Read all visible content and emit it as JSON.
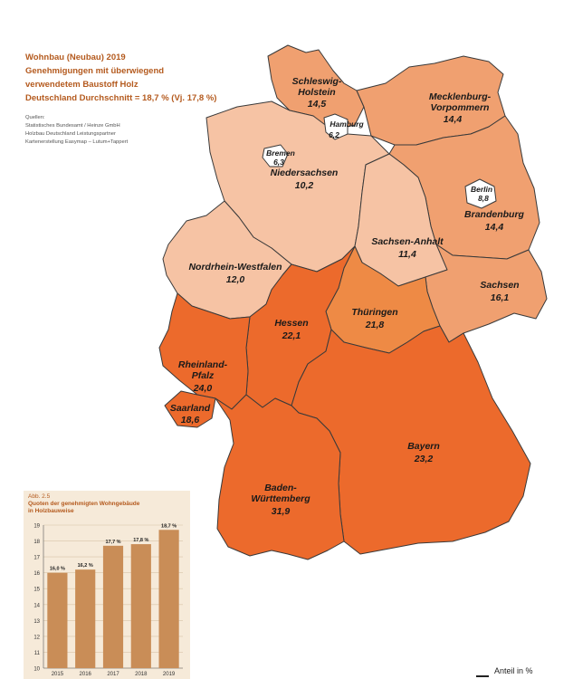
{
  "header": {
    "title_lines": [
      "Wohnbau (Neubau) 2019",
      "Genehmigungen mit überwiegend",
      "verwendetem Baustoff Holz",
      "Deutschland Durchschnitt = 18,7 % (Vj. 17,8 %)"
    ],
    "sources_lines": [
      "Quellen:",
      "Statistisches Bundesamt / Heinze GmbH",
      "Holzbau Deutschland Leistungspartner",
      "Kartenerstellung Easymap – Lutum+Tappert"
    ]
  },
  "states": [
    {
      "name_lines": [
        "Schleswig-",
        "Holstein"
      ],
      "value": "14,5",
      "color": "#f0a070"
    },
    {
      "name_lines": [
        "Hamburg"
      ],
      "value": "6,2",
      "color": "#ffffff"
    },
    {
      "name_lines": [
        "Mecklenburg-",
        "Vorpommern"
      ],
      "value": "14,4",
      "color": "#f0a070"
    },
    {
      "name_lines": [
        "Bremen"
      ],
      "value": "6,3",
      "color": "#ffffff"
    },
    {
      "name_lines": [
        "Niedersachsen"
      ],
      "value": "10,2",
      "color": "#f6c3a4"
    },
    {
      "name_lines": [
        "Berlin"
      ],
      "value": "8,8",
      "color": "#ffffff"
    },
    {
      "name_lines": [
        "Brandenburg"
      ],
      "value": "14,4",
      "color": "#f0a070"
    },
    {
      "name_lines": [
        "Sachsen-Anhalt"
      ],
      "value": "11,4",
      "color": "#f6c3a4"
    },
    {
      "name_lines": [
        "Nordrhein-Westfalen"
      ],
      "value": "12,0",
      "color": "#f6c3a4"
    },
    {
      "name_lines": [
        "Sachsen"
      ],
      "value": "16,1",
      "color": "#f0a070"
    },
    {
      "name_lines": [
        "Thüringen"
      ],
      "value": "21,8",
      "color": "#ee8a45"
    },
    {
      "name_lines": [
        "Hessen"
      ],
      "value": "22,1",
      "color": "#ec6a2c"
    },
    {
      "name_lines": [
        "Rheinland-",
        "Pfalz"
      ],
      "value": "24,0",
      "color": "#ec6a2c"
    },
    {
      "name_lines": [
        "Saarland"
      ],
      "value": "18,6",
      "color": "#ec6a2c"
    },
    {
      "name_lines": [
        "Bayern"
      ],
      "value": "23,2",
      "color": "#ec6a2c"
    },
    {
      "name_lines": [
        "Baden-",
        "Württemberg"
      ],
      "value": "31,9",
      "color": "#ec6a2c"
    }
  ],
  "legend": {
    "label": "Anteil in %"
  },
  "chart_data": {
    "type": "bar",
    "label": "Abb. 2.5",
    "title_lines": [
      "Quoten der genehmigten Wohngebäude",
      "in Holzbauweise"
    ],
    "categories": [
      "2015",
      "2016",
      "2017",
      "2018",
      "2019"
    ],
    "values": [
      16.0,
      16.2,
      17.7,
      17.8,
      18.7
    ],
    "value_labels": [
      "16,0 %",
      "16,2 %",
      "17,7 %",
      "17,8 %",
      "18,7 %"
    ],
    "ylim": [
      10,
      19
    ],
    "yticks": [
      "10",
      "11",
      "12",
      "13",
      "14",
      "15",
      "16",
      "17",
      "18",
      "19"
    ],
    "bar_color": "#c98d57",
    "grid": true
  }
}
